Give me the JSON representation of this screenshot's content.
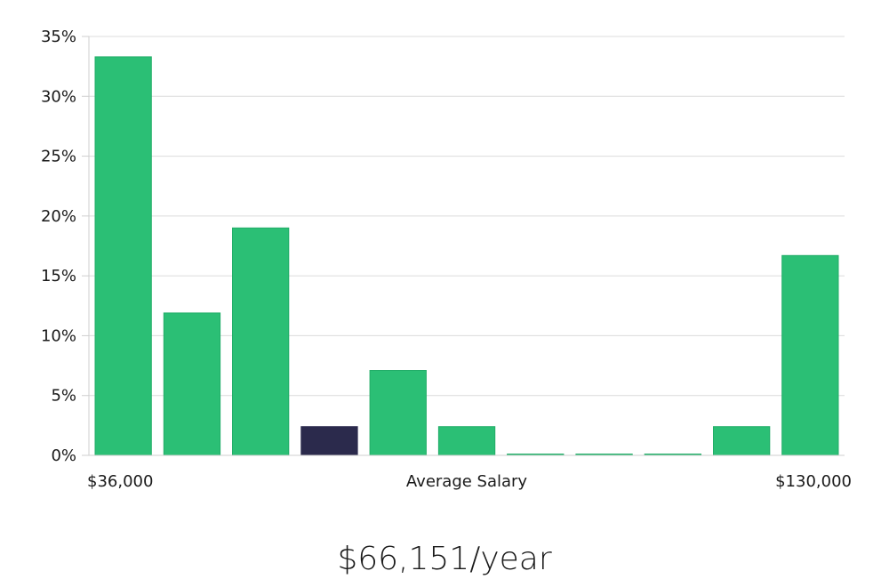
{
  "caption": "$66,151/year",
  "chart_data": {
    "type": "bar",
    "y_ticks": [
      "0%",
      "5%",
      "10%",
      "15%",
      "20%",
      "25%",
      "30%",
      "35%"
    ],
    "ylim": [
      0,
      35
    ],
    "values": [
      33.3,
      11.9,
      19.0,
      2.4,
      7.1,
      2.4,
      0,
      0,
      0,
      2.4,
      16.7
    ],
    "highlight_index": 3,
    "xlabel": "Average Salary",
    "x_min_label": "$36,000",
    "x_max_label": "$130,000",
    "grid": true,
    "colors": {
      "bar": "#2bbf75",
      "bar_stroke": "#22ad68",
      "highlight": "#2b2a4c"
    }
  }
}
